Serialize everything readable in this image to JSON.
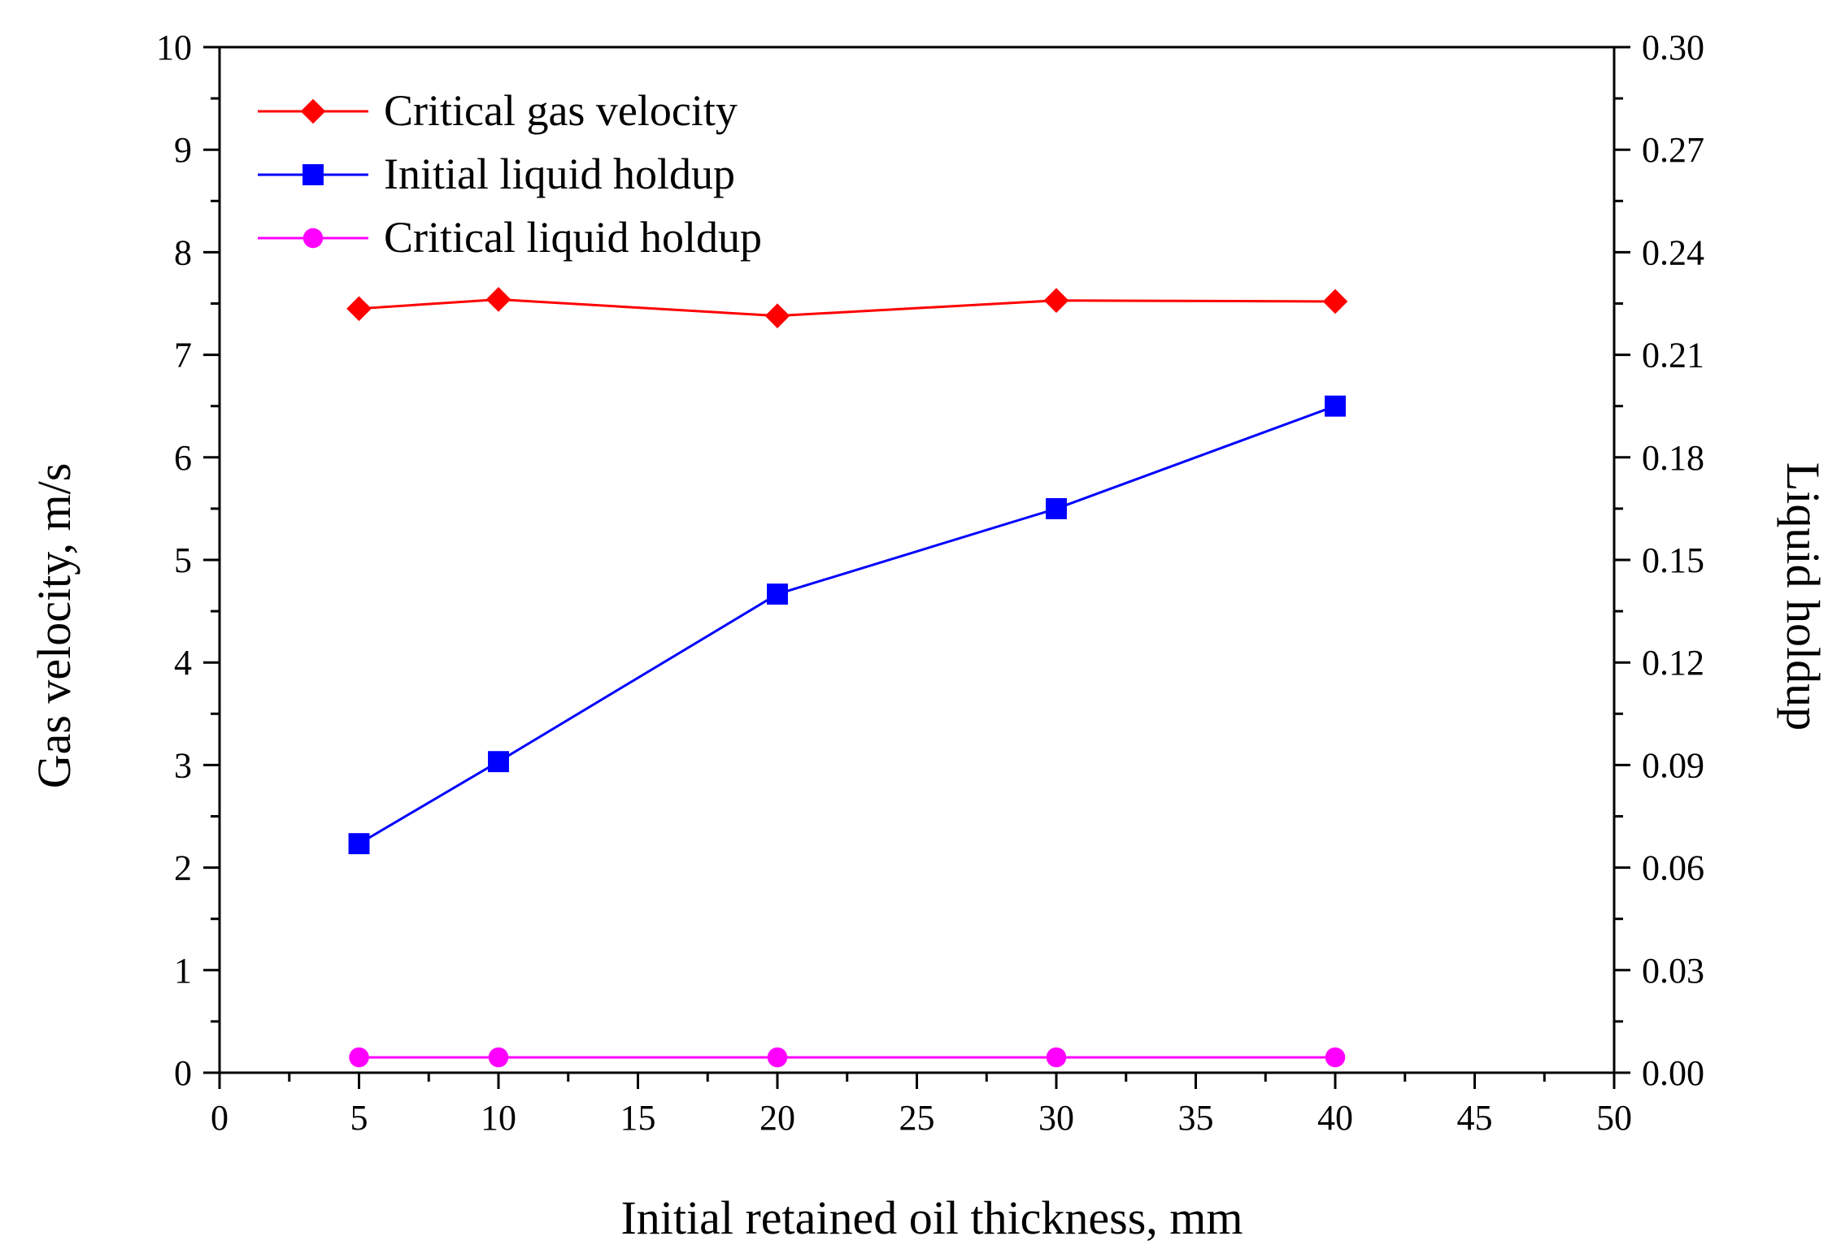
{
  "chart_data": {
    "type": "line",
    "title": "",
    "xlabel": "Initial retained oil thickness, mm",
    "ylabel": "Gas velocity, m/s",
    "y2label": "Liquid holdup",
    "xlim": [
      0,
      50
    ],
    "ylim": [
      0,
      10
    ],
    "y2lim": [
      0,
      0.3
    ],
    "x_ticks": [
      "0",
      "5",
      "10",
      "15",
      "20",
      "25",
      "30",
      "35",
      "40",
      "45",
      "50"
    ],
    "y_ticks": [
      "0",
      "1",
      "2",
      "3",
      "4",
      "5",
      "6",
      "7",
      "8",
      "9",
      "10"
    ],
    "y2_ticks": [
      "0.00",
      "0.03",
      "0.06",
      "0.09",
      "0.12",
      "0.15",
      "0.18",
      "0.21",
      "0.24",
      "0.27",
      "0.30"
    ],
    "grid": false,
    "legend_position": "top-left",
    "series": [
      {
        "name": "Critical gas velocity",
        "axis": "left",
        "marker": "diamond",
        "color": "#ff0000",
        "x": [
          5,
          10,
          20,
          30,
          40
        ],
        "values": [
          7.45,
          7.54,
          7.38,
          7.53,
          7.52
        ]
      },
      {
        "name": "Initial liquid holdup",
        "axis": "right",
        "marker": "square",
        "color": "#0000ff",
        "x": [
          5,
          10,
          20,
          30,
          40
        ],
        "values": [
          0.067,
          0.091,
          0.14,
          0.165,
          0.195
        ]
      },
      {
        "name": "Critical liquid holdup",
        "axis": "right",
        "marker": "circle",
        "color": "#ff00ff",
        "x": [
          5,
          10,
          20,
          30,
          40
        ],
        "values": [
          0.0045,
          0.0045,
          0.0045,
          0.0045,
          0.0045
        ]
      }
    ]
  }
}
